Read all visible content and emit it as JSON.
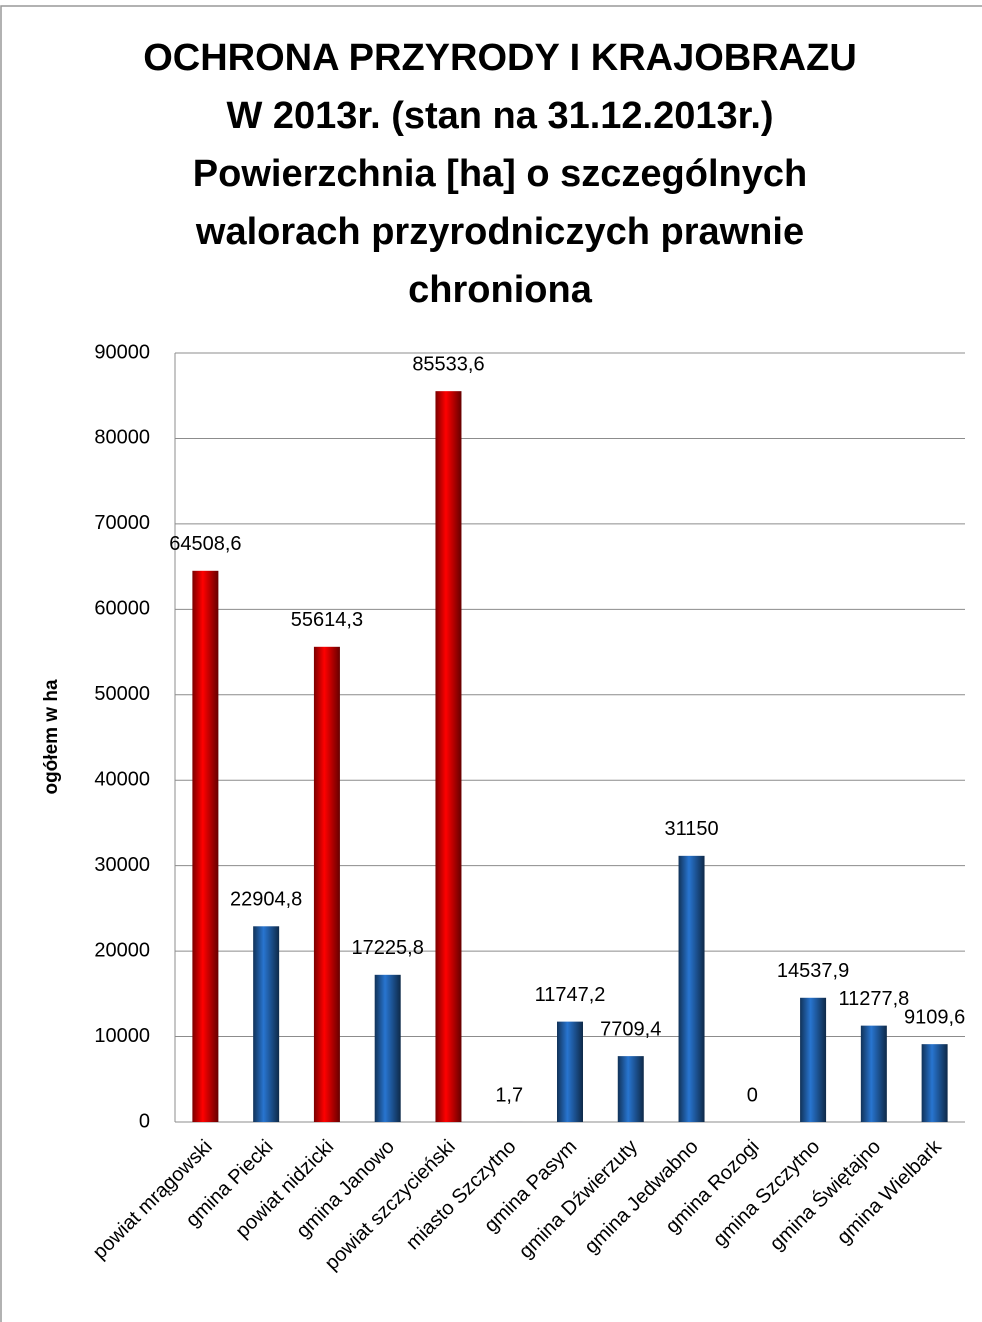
{
  "chart_data": {
    "type": "bar",
    "title": [
      "OCHRONA PRZYRODY I KRAJOBRAZU",
      "W 2013r. (stan na 31.12.2013r.)",
      "Powierzchnia  [ha] o szczególnych",
      "walorach przyrodniczych prawnie",
      "chroniona"
    ],
    "y_label": "ogółem w ha",
    "categories": [
      "powiat mrągowski",
      "gmina Piecki",
      "powiat nidzicki",
      "gmina Janowo",
      "powiat szczycieński",
      "miasto Szczytno",
      "gmina Pasym",
      "gmina Dźwierzuty",
      "gmina Jedwabno",
      "gmina Rozogi",
      "gmina Szczytno",
      "gmina Świętajno",
      "gmina Wielbark"
    ],
    "values": [
      64508.6,
      22904.8,
      55614.3,
      17225.8,
      85533.6,
      1.7,
      11747.2,
      7709.4,
      31150,
      0,
      14537.9,
      11277.8,
      9109.6
    ],
    "value_labels": [
      "64508,6",
      "22904,8",
      "55614,3",
      "17225,8",
      "85533,6",
      "1,7",
      "11747,2",
      "7709,4",
      "31150",
      "0",
      "14537,9",
      "11277,8",
      "9109,6"
    ],
    "colors": [
      "#e00000",
      "#1f5aa0",
      "#e00000",
      "#1f5aa0",
      "#e00000",
      "#1f5aa0",
      "#1f5aa0",
      "#1f5aa0",
      "#1f5aa0",
      "#1f5aa0",
      "#1f5aa0",
      "#1f5aa0",
      "#1f5aa0"
    ],
    "ylim": [
      0,
      90000
    ],
    "yticks": [
      0,
      10000,
      20000,
      30000,
      40000,
      50000,
      60000,
      70000,
      80000,
      90000
    ],
    "grid": true
  }
}
